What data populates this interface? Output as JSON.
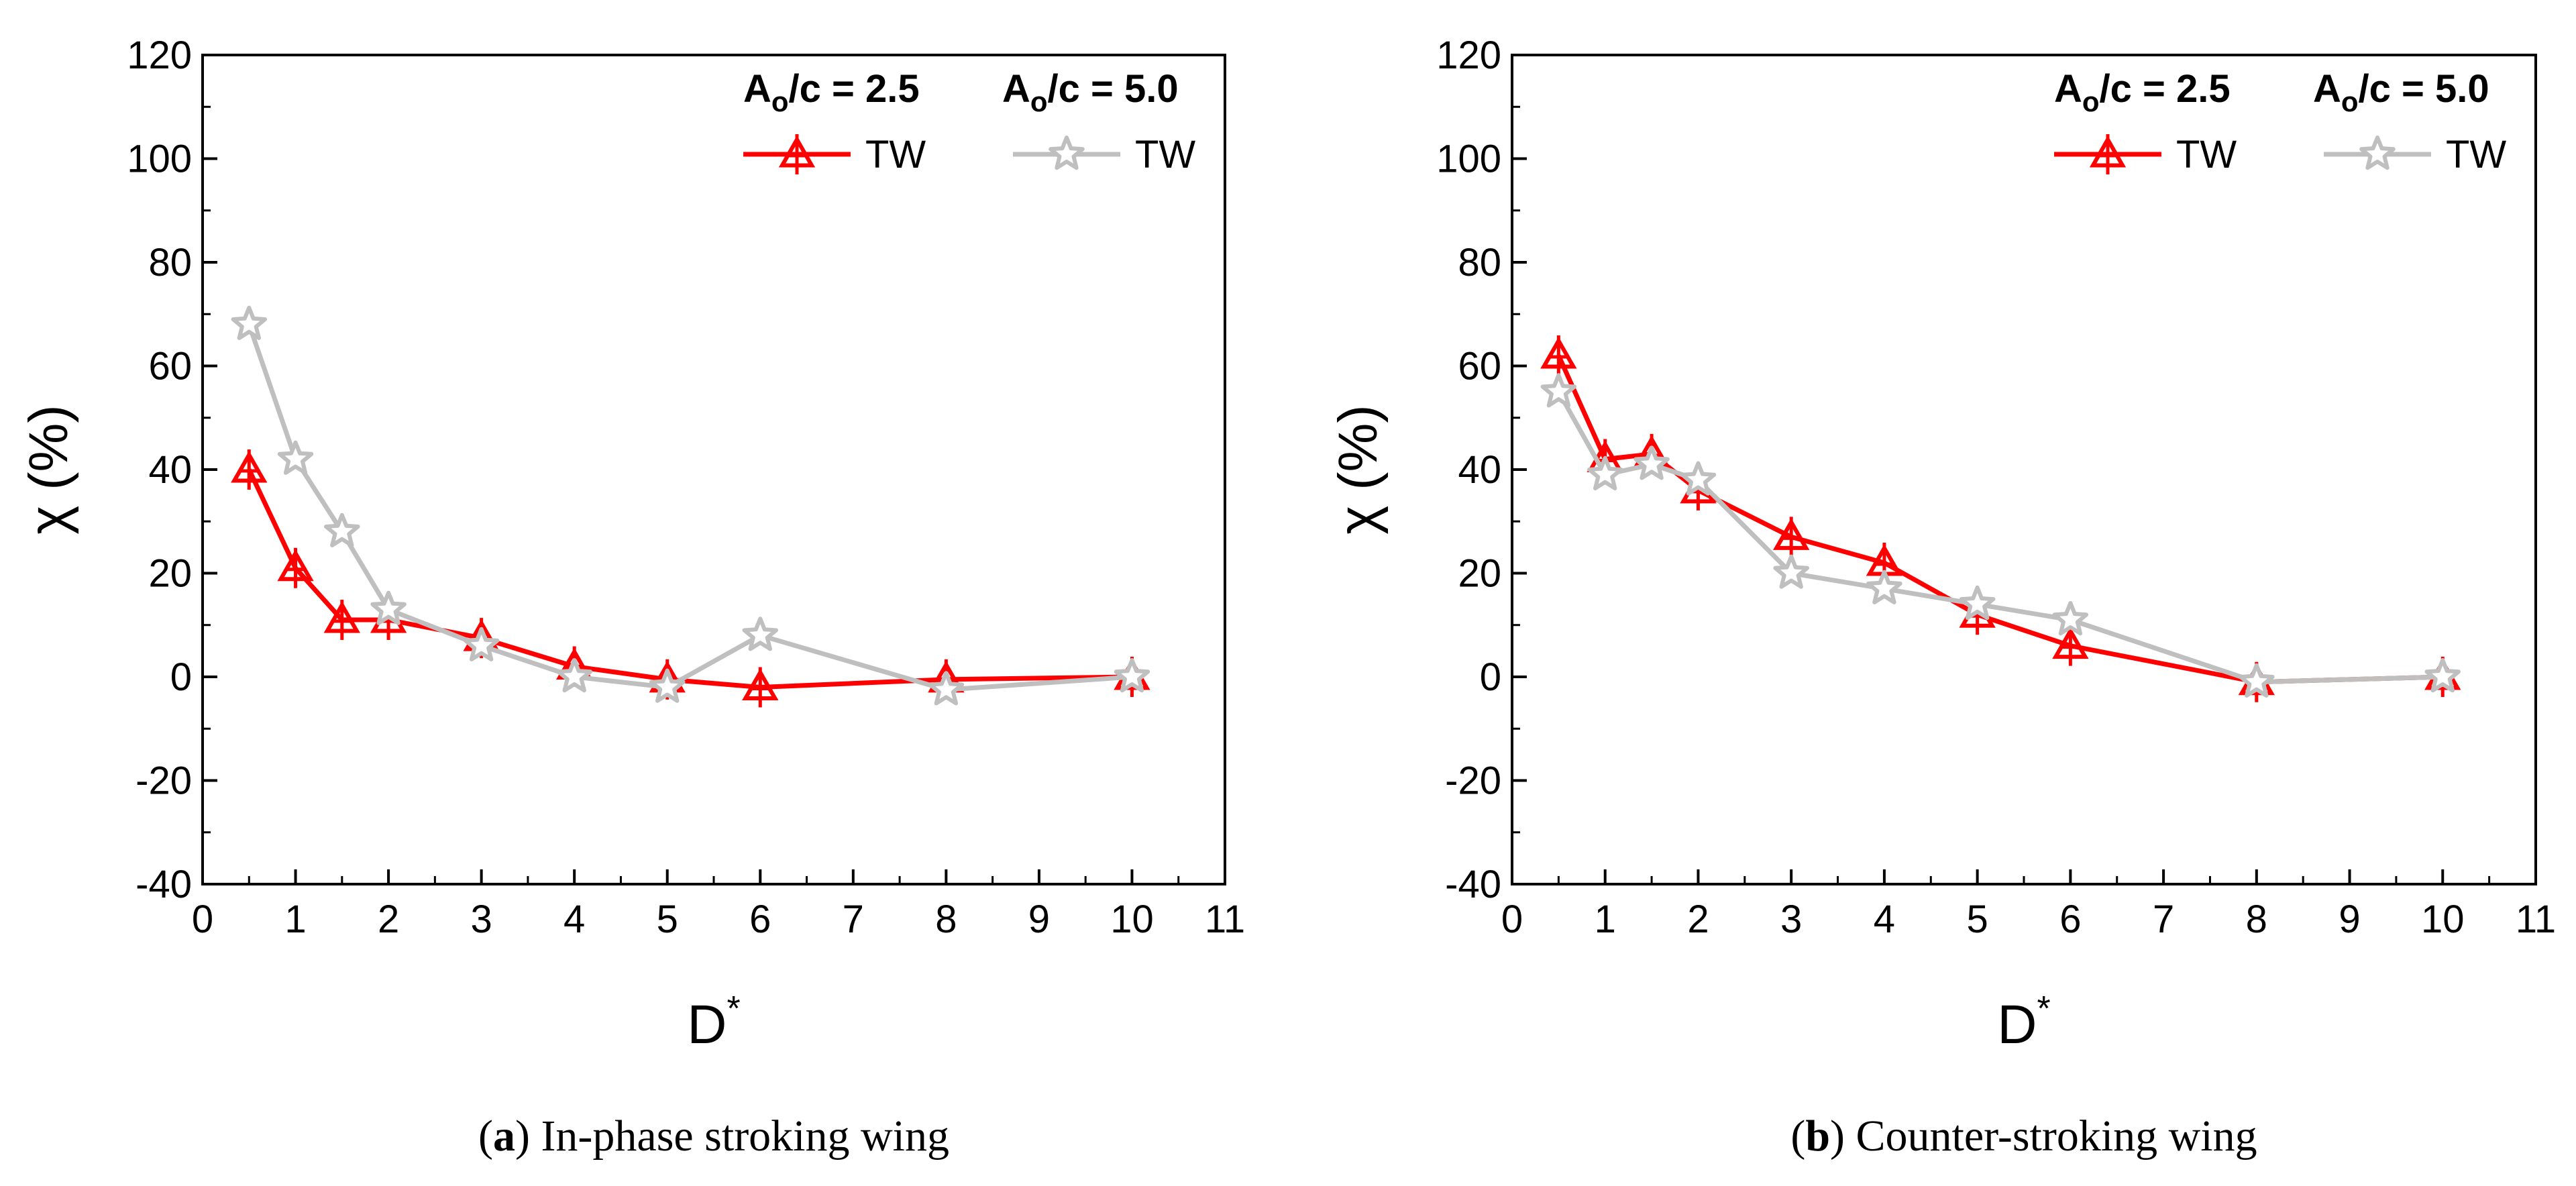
{
  "chart_data": [
    {
      "type": "line",
      "panel_letter": "a",
      "caption": "In-phase stroking wing",
      "xlabel": "D",
      "xlabel_superscript": "*",
      "ylabel": "χ (%)",
      "xlim": [
        0,
        11
      ],
      "ylim": [
        -40,
        120
      ],
      "xticks": [
        0,
        1,
        2,
        3,
        4,
        5,
        6,
        7,
        8,
        9,
        10,
        11
      ],
      "yticks": [
        -40,
        -20,
        0,
        20,
        40,
        60,
        80,
        100,
        120
      ],
      "legend_placement": "top-right",
      "series": [
        {
          "name": "TW",
          "group_base": "A",
          "group_sub": "o",
          "group_rest": "/c = 2.5",
          "color": "#ff0000",
          "marker": "triangle",
          "x": [
            0.5,
            1,
            1.5,
            2,
            3,
            4,
            5,
            6,
            8,
            10
          ],
          "y": [
            40,
            21,
            11,
            11,
            7.5,
            2,
            -0.5,
            -2,
            -0.5,
            0
          ]
        },
        {
          "name": "TW",
          "group_base": "A",
          "group_sub": "o",
          "group_rest": "/c = 5.0",
          "color": "#bfbfbf",
          "marker": "star",
          "x": [
            0.5,
            1,
            1.5,
            2,
            3,
            4,
            5,
            6,
            8,
            10
          ],
          "y": [
            68,
            42,
            28,
            13,
            6,
            0,
            -2,
            8,
            -2.5,
            0
          ]
        }
      ]
    },
    {
      "type": "line",
      "panel_letter": "b",
      "caption": "Counter-stroking wing",
      "xlabel": "D",
      "xlabel_superscript": "*",
      "ylabel": "χ (%)",
      "xlim": [
        0,
        11
      ],
      "ylim": [
        -40,
        120
      ],
      "xticks": [
        0,
        1,
        2,
        3,
        4,
        5,
        6,
        7,
        8,
        9,
        10,
        11
      ],
      "yticks": [
        -40,
        -20,
        0,
        20,
        40,
        60,
        80,
        100,
        120
      ],
      "legend_placement": "top-right",
      "series": [
        {
          "name": "TW",
          "group_base": "A",
          "group_sub": "o",
          "group_rest": "/c = 2.5",
          "color": "#ff0000",
          "marker": "triangle",
          "x": [
            0.5,
            1,
            1.5,
            2,
            3,
            4,
            5,
            6,
            8,
            10
          ],
          "y": [
            62,
            42,
            43,
            36,
            27,
            22,
            12,
            6,
            -1,
            0
          ]
        },
        {
          "name": "TW",
          "group_base": "A",
          "group_sub": "o",
          "group_rest": "/c = 5.0",
          "color": "#bfbfbf",
          "marker": "star",
          "x": [
            0.5,
            1,
            1.5,
            2,
            3,
            4,
            5,
            6,
            8,
            10
          ],
          "y": [
            55,
            39,
            41,
            38,
            20,
            17,
            14,
            11,
            -1,
            0
          ]
        }
      ]
    }
  ]
}
